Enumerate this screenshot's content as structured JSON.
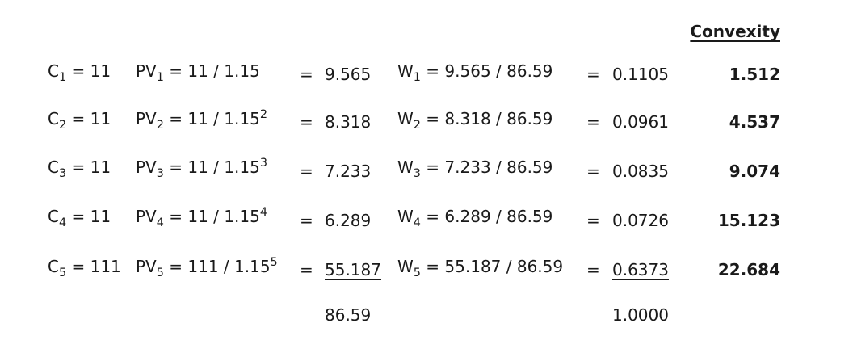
{
  "header": "Convexity",
  "rows": [
    {
      "c_pre": "C",
      "c_sub": "1",
      "c_post": " = 11",
      "pv_pre": "PV",
      "pv_sub": "1",
      "pv_mid": " = 11 / 1.15",
      "pv_sup": "",
      "eq1": "=",
      "pv_value": "9.565",
      "w_pre": "W",
      "w_sub": "1",
      "w_post": " = 9.565 / 86.59",
      "eq2": "=",
      "w_value": "0.1105",
      "convexity": "1.512"
    },
    {
      "c_pre": "C",
      "c_sub": "2",
      "c_post": " = 11",
      "pv_pre": "PV",
      "pv_sub": "2",
      "pv_mid": " = 11 / 1.15",
      "pv_sup": "2",
      "eq1": "=",
      "pv_value": "8.318",
      "w_pre": "W",
      "w_sub": "2",
      "w_post": " = 8.318 / 86.59",
      "eq2": "=",
      "w_value": "0.0961",
      "convexity": "4.537"
    },
    {
      "c_pre": "C",
      "c_sub": "3",
      "c_post": " = 11",
      "pv_pre": "PV",
      "pv_sub": "3",
      "pv_mid": " = 11 / 1.15",
      "pv_sup": "3",
      "eq1": "=",
      "pv_value": "7.233",
      "w_pre": "W",
      "w_sub": "3",
      "w_post": " = 7.233 / 86.59",
      "eq2": "=",
      "w_value": "0.0835",
      "convexity": "9.074"
    },
    {
      "c_pre": "C",
      "c_sub": "4",
      "c_post": " = 11",
      "pv_pre": "PV",
      "pv_sub": "4",
      "pv_mid": " = 11 / 1.15",
      "pv_sup": "4",
      "eq1": "=",
      "pv_value": "6.289",
      "w_pre": "W",
      "w_sub": "4",
      "w_post": " = 6.289 / 86.59",
      "eq2": "=",
      "w_value": "0.0726",
      "convexity": "15.123"
    },
    {
      "c_pre": "C",
      "c_sub": "5",
      "c_post": " = 111",
      "pv_pre": "PV",
      "pv_sub": "5",
      "pv_mid": " = 111 / 1.15",
      "pv_sup": "5",
      "eq1": "=",
      "pv_value": "55.187",
      "w_pre": "W",
      "w_sub": "5",
      "w_post": " = 55.187 / 86.59",
      "eq2": "=",
      "w_value": "0.6373",
      "convexity": "22.684"
    }
  ],
  "totals": {
    "pv_total": "86.59",
    "w_total": "1.0000"
  }
}
